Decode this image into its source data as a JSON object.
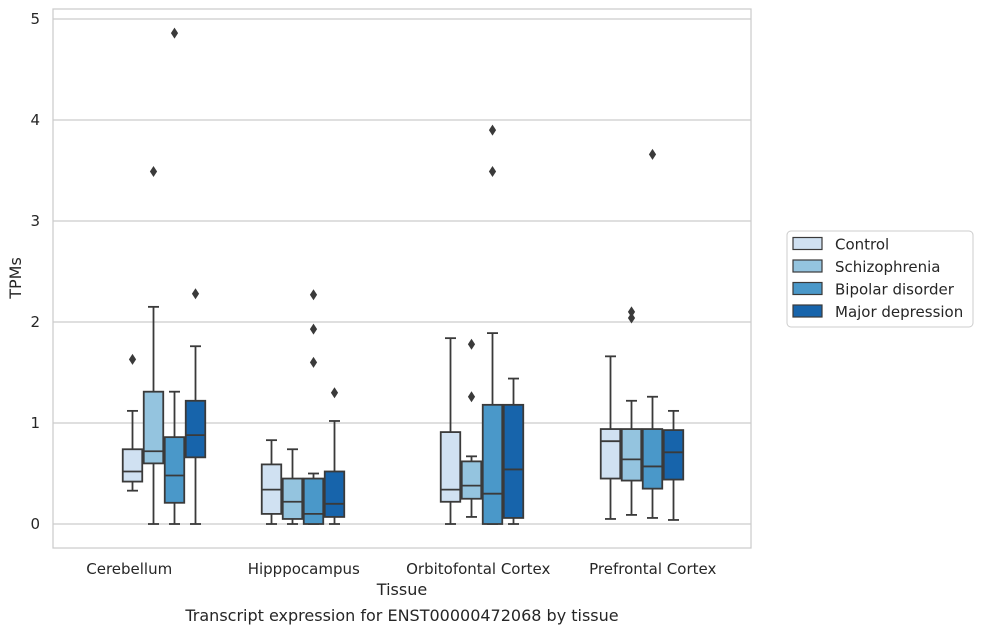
{
  "chart_data": {
    "type": "boxplot",
    "title": "",
    "caption": "Transcript expression for ENST00000472068 by tissue",
    "xlabel": "Tissue",
    "ylabel": "TPMs",
    "ylim": [
      -0.22,
      5.1
    ],
    "yticks": [
      "0",
      "1",
      "2",
      "3",
      "4",
      "5"
    ],
    "grid": true,
    "legend_position": "right",
    "categories": [
      "Cerebellum",
      "Hipppocampus",
      "Orbitofontal Cortex",
      "Prefrontal Cortex"
    ],
    "series": [
      {
        "name": "Control",
        "color": "#d0e1f2",
        "boxes": [
          {
            "whisker_low": 0.33,
            "q1": 0.42,
            "median": 0.52,
            "q3": 0.74,
            "whisker_high": 1.12,
            "outliers": [
              1.63
            ]
          },
          {
            "whisker_low": 0.0,
            "q1": 0.1,
            "median": 0.34,
            "q3": 0.59,
            "whisker_high": 0.83,
            "outliers": []
          },
          {
            "whisker_low": 0.0,
            "q1": 0.22,
            "median": 0.34,
            "q3": 0.91,
            "whisker_high": 1.84,
            "outliers": []
          },
          {
            "whisker_low": 0.05,
            "q1": 0.45,
            "median": 0.82,
            "q3": 0.94,
            "whisker_high": 1.66,
            "outliers": []
          }
        ]
      },
      {
        "name": "Schizophrenia",
        "color": "#94c4df",
        "boxes": [
          {
            "whisker_low": 0.0,
            "q1": 0.6,
            "median": 0.72,
            "q3": 1.31,
            "whisker_high": 2.15,
            "outliers": [
              3.49
            ]
          },
          {
            "whisker_low": 0.0,
            "q1": 0.05,
            "median": 0.22,
            "q3": 0.45,
            "whisker_high": 0.74,
            "outliers": []
          },
          {
            "whisker_low": 0.07,
            "q1": 0.25,
            "median": 0.38,
            "q3": 0.62,
            "whisker_high": 0.67,
            "outliers": [
              1.26,
              1.78
            ]
          },
          {
            "whisker_low": 0.09,
            "q1": 0.43,
            "median": 0.64,
            "q3": 0.94,
            "whisker_high": 1.22,
            "outliers": [
              2.04,
              2.1
            ]
          }
        ]
      },
      {
        "name": "Bipolar disorder",
        "color": "#4a98c9",
        "boxes": [
          {
            "whisker_low": 0.0,
            "q1": 0.21,
            "median": 0.48,
            "q3": 0.86,
            "whisker_high": 1.31,
            "outliers": [
              4.86
            ]
          },
          {
            "whisker_low": 0.0,
            "q1": 0.0,
            "median": 0.1,
            "q3": 0.45,
            "whisker_high": 0.5,
            "outliers": [
              1.6,
              1.93,
              2.27
            ]
          },
          {
            "whisker_low": 0.0,
            "q1": 0.0,
            "median": 0.3,
            "q3": 1.18,
            "whisker_high": 1.89,
            "outliers": [
              3.49,
              3.9
            ]
          },
          {
            "whisker_low": 0.06,
            "q1": 0.35,
            "median": 0.57,
            "q3": 0.94,
            "whisker_high": 1.26,
            "outliers": [
              3.66
            ]
          }
        ]
      },
      {
        "name": "Major depression",
        "color": "#1764ab",
        "boxes": [
          {
            "whisker_low": 0.0,
            "q1": 0.66,
            "median": 0.88,
            "q3": 1.22,
            "whisker_high": 1.76,
            "outliers": [
              2.28
            ]
          },
          {
            "whisker_low": 0.0,
            "q1": 0.07,
            "median": 0.2,
            "q3": 0.52,
            "whisker_high": 1.02,
            "outliers": [
              1.3
            ]
          },
          {
            "whisker_low": 0.0,
            "q1": 0.06,
            "median": 0.54,
            "q3": 1.18,
            "whisker_high": 1.44,
            "outliers": []
          },
          {
            "whisker_low": 0.04,
            "q1": 0.44,
            "median": 0.71,
            "q3": 0.93,
            "whisker_high": 1.12,
            "outliers": []
          }
        ]
      }
    ]
  }
}
